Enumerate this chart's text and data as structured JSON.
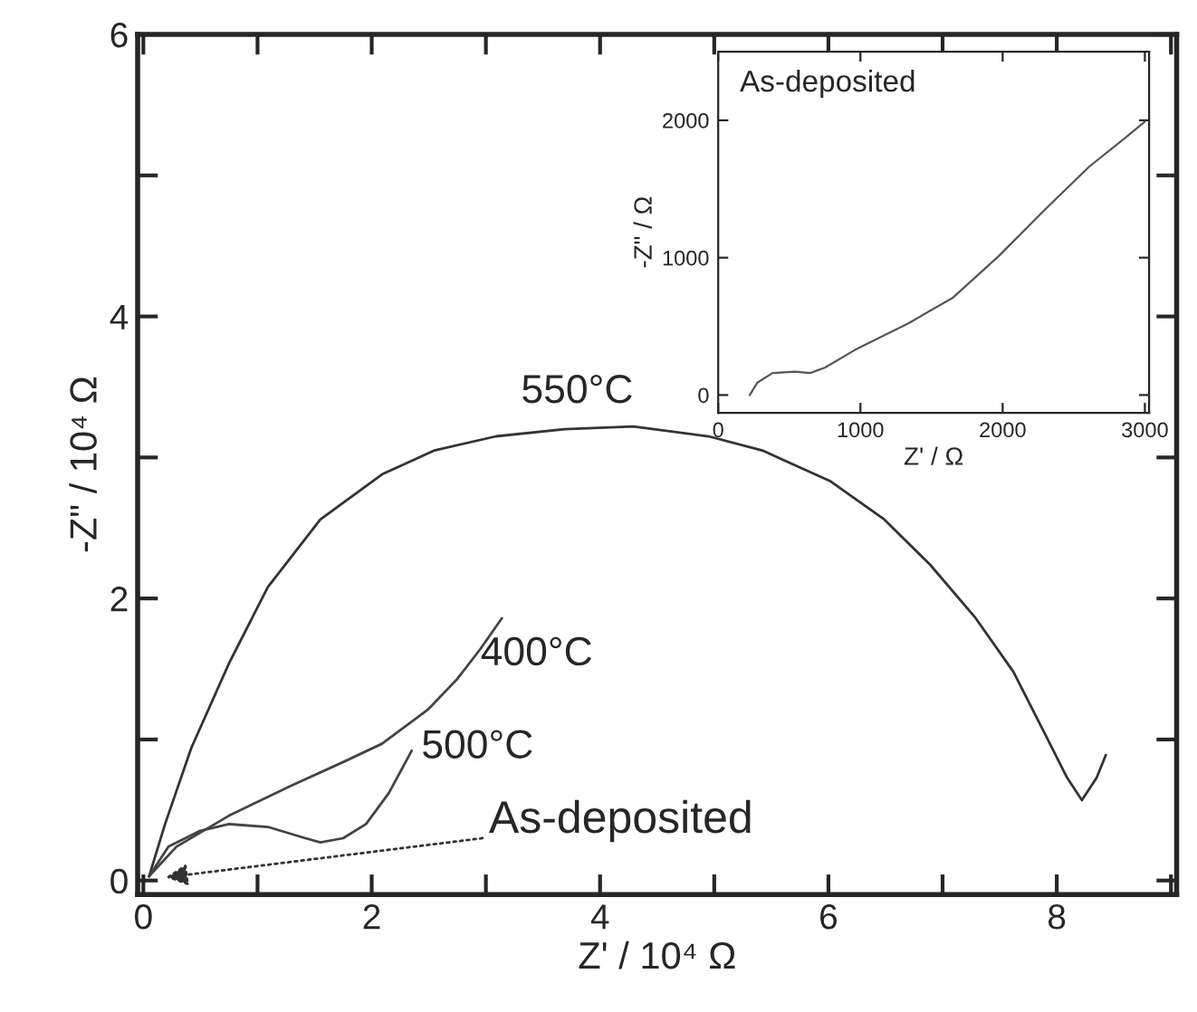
{
  "chart_data": [
    {
      "type": "line",
      "xlabel": "Z' / 10⁴ Ω",
      "ylabel": "-Z\" / 10⁴ Ω",
      "xlim": [
        -0.05,
        9.05
      ],
      "ylim": [
        -0.1,
        6
      ],
      "xticks": [
        0,
        {
          "value": 1,
          "label": null
        },
        2,
        {
          "value": 3,
          "label": null
        },
        4,
        {
          "value": 5,
          "label": null
        },
        6,
        {
          "value": 7,
          "label": null
        },
        8,
        {
          "value": 9,
          "label": null
        }
      ],
      "yticks": [
        0,
        {
          "value": 1,
          "label": null
        },
        2,
        {
          "value": 3,
          "label": null
        },
        4,
        {
          "value": 5,
          "label": null
        },
        6
      ],
      "grid": false,
      "legend": false,
      "marker": "none",
      "line_style": "solid",
      "series": [
        {
          "color": "#333333",
          "x": [
            0.05,
            0.19,
            0.42,
            0.75,
            1.09,
            1.55,
            2.09,
            2.55,
            3.09,
            3.69,
            4.29,
            4.95,
            5.42,
            6.02,
            6.49,
            6.89,
            7.29,
            7.62,
            7.89,
            8.09,
            8.22,
            8.35,
            8.43
          ],
          "values": [
            0.03,
            0.4,
            0.94,
            1.54,
            2.08,
            2.56,
            2.88,
            3.05,
            3.15,
            3.2,
            3.22,
            3.15,
            3.05,
            2.83,
            2.56,
            2.24,
            1.86,
            1.48,
            1.05,
            0.73,
            0.57,
            0.73,
            0.89
          ]
        },
        {
          "color": "#444444",
          "x": [
            0.05,
            0.29,
            0.75,
            1.29,
            1.75,
            2.09,
            2.49,
            2.75,
            2.95,
            3.14
          ],
          "values": [
            0.03,
            0.24,
            0.46,
            0.67,
            0.84,
            0.97,
            1.21,
            1.43,
            1.64,
            1.86
          ]
        },
        {
          "color": "#444444",
          "x": [
            0.05,
            0.22,
            0.49,
            0.75,
            1.09,
            1.42,
            1.55,
            1.75,
            1.95,
            2.15,
            2.35
          ],
          "values": [
            0.03,
            0.24,
            0.35,
            0.4,
            0.38,
            0.3,
            0.27,
            0.3,
            0.4,
            0.62,
            0.92
          ]
        }
      ],
      "annotations": [
        "550°C",
        "400°C",
        "500°C",
        "As-deposited"
      ]
    },
    {
      "type": "line",
      "xlabel": "Z' / Ω",
      "ylabel": "-Z\" / Ω",
      "xlim": [
        0,
        3030
      ],
      "ylim": [
        -130,
        2500
      ],
      "xticks": [
        0,
        1000,
        2000,
        3000
      ],
      "yticks": [
        0,
        1000,
        2000
      ],
      "grid": false,
      "legend": false,
      "marker": "none",
      "line_style": "solid",
      "series": [
        {
          "color": "#555555",
          "x": [
            222,
            275,
            382,
            540,
            646,
            752,
            964,
            1334,
            1652,
            1971,
            2288,
            2606,
            2871,
            3000
          ],
          "values": [
            0,
            90,
            160,
            170,
            160,
            200,
            330,
            520,
            710,
            1010,
            1340,
            1660,
            1880,
            1990
          ]
        }
      ],
      "annotations": [
        "As-deposited"
      ]
    }
  ]
}
